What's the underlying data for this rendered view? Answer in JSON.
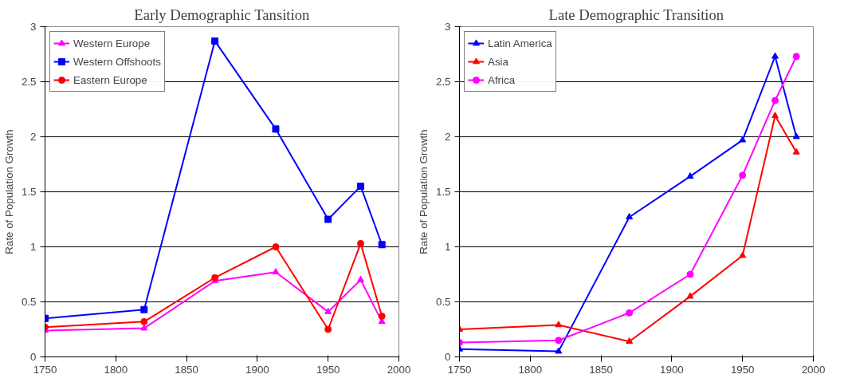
{
  "chart_data": [
    {
      "type": "line",
      "title": "Early Demographic Tansition",
      "ylabel": "Rate of Population Growth",
      "x": [
        1750,
        1820,
        1870,
        1913,
        1950,
        1973,
        1988
      ],
      "xlim": [
        1750,
        2000
      ],
      "xticks": [
        1750,
        1800,
        1850,
        1900,
        1950,
        2000
      ],
      "ylim": [
        0,
        3
      ],
      "yticks": [
        0,
        0.5,
        1,
        1.5,
        2,
        2.5,
        3
      ],
      "grid": "y",
      "legend": "top left",
      "line_style": "solid",
      "series": [
        {
          "name": "Western Europe",
          "color": "#ff00ff",
          "marker": "triangle",
          "values": [
            0.24,
            0.26,
            0.69,
            0.77,
            0.41,
            0.7,
            0.32
          ]
        },
        {
          "name": "Western Offshoots",
          "color": "#0000ff",
          "marker": "square",
          "values": [
            0.35,
            0.43,
            2.87,
            2.07,
            1.25,
            1.55,
            1.02
          ]
        },
        {
          "name": "Eastern Europe",
          "color": "#ff0000",
          "marker": "circle",
          "values": [
            0.27,
            0.32,
            0.72,
            1.0,
            0.25,
            1.03,
            0.37
          ]
        }
      ]
    },
    {
      "type": "line",
      "title": "Late Demographic Transition",
      "ylabel": "Rate of Population Growth",
      "x": [
        1750,
        1820,
        1870,
        1913,
        1950,
        1973,
        1988
      ],
      "xlim": [
        1750,
        2000
      ],
      "xticks": [
        1750,
        1800,
        1850,
        1900,
        1950,
        2000
      ],
      "ylim": [
        0,
        3
      ],
      "yticks": [
        0,
        0.5,
        1,
        1.5,
        2,
        2.5,
        3
      ],
      "grid": "y",
      "legend": "top left",
      "line_style": "solid",
      "series": [
        {
          "name": "Latin America",
          "color": "#0000ff",
          "marker": "triangle",
          "values": [
            0.07,
            0.05,
            1.27,
            1.64,
            1.97,
            2.73,
            2.0
          ]
        },
        {
          "name": "Asia",
          "color": "#ff0000",
          "marker": "triangle",
          "values": [
            0.25,
            0.29,
            0.14,
            0.55,
            0.92,
            2.19,
            1.86
          ]
        },
        {
          "name": "Africa",
          "color": "#ff00ff",
          "marker": "circle",
          "values": [
            0.13,
            0.15,
            0.4,
            0.75,
            1.65,
            2.33,
            2.73
          ]
        }
      ]
    }
  ]
}
